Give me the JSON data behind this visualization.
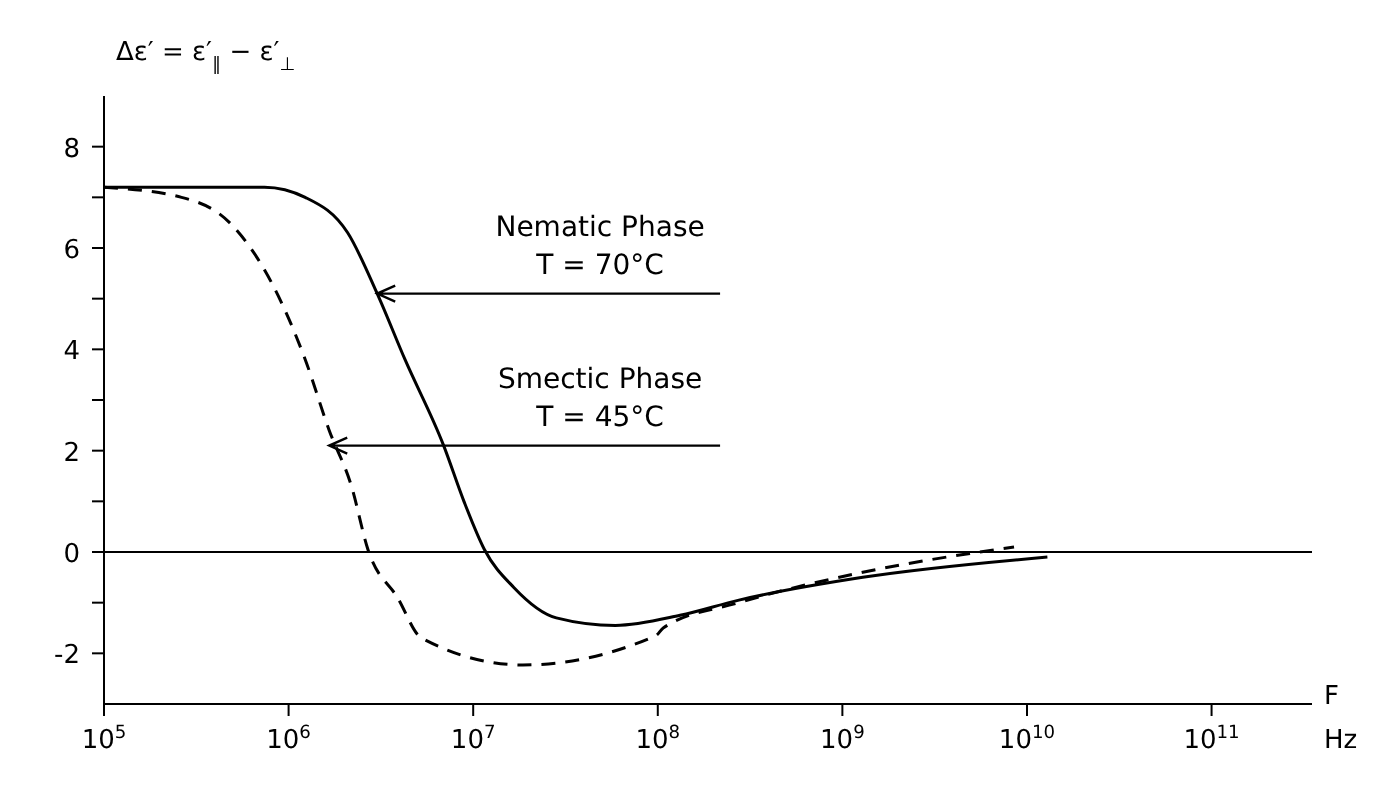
{
  "chart_data": {
    "type": "line",
    "xlabel": "F\nHz",
    "ylabel": "Δε′ = ε′$_{∥}$ − ε′$_{⊥}$",
    "log": "x",
    "marker": "none",
    "xlim": [
      100000,
      350000000000
    ],
    "xticks": [
      {
        "value": 100000,
        "label": "10$^{5}$"
      },
      {
        "value": 1000000,
        "label": "10$^{6}$"
      },
      {
        "value": 10000000,
        "label": "10$^{7}$"
      },
      {
        "value": 100000000,
        "label": "10$^{8}$"
      },
      {
        "value": 1000000000,
        "label": "10$^{9}$"
      },
      {
        "value": 10000000000,
        "label": "10$^{10}$"
      },
      {
        "value": 100000000000,
        "label": "10$^{11}$"
      }
    ],
    "ylim": [
      -3,
      9
    ],
    "yticks": [
      -2,
      {
        "value": -1,
        "label": null
      },
      0,
      {
        "value": 1,
        "label": null
      },
      2,
      {
        "value": 3,
        "label": null
      },
      4,
      {
        "value": 5,
        "label": null
      },
      6,
      {
        "value": 7,
        "label": null
      },
      8
    ],
    "series": [
      {
        "color": "#000000",
        "line_style": "solid",
        "x": [
          100000,
          740000,
          1230000,
          2090000,
          3020000,
          4270000,
          6920000,
          8910000,
          11500000,
          16600000,
          28200000,
          58900000,
          132000000,
          275000000,
          1290000000,
          12900000000
        ],
        "values": [
          7.2,
          7.2,
          7.0,
          6.3,
          5.1,
          3.8,
          2.1,
          1.0,
          0.05,
          -0.7,
          -1.3,
          -1.45,
          -1.25,
          -0.95,
          -0.5,
          -0.1
        ]
      },
      {
        "color": "#000000",
        "line_style": "dashed",
        "x": [
          100000,
          263000,
          479000,
          813000,
          1230000,
          1660000,
          2190000,
          2690000,
          3890000,
          5250000,
          18600000,
          97700000,
          107000000,
          275000000,
          1290000000,
          8510000000
        ],
        "values": [
          7.2,
          7.0,
          6.5,
          5.3,
          3.8,
          2.4,
          1.3,
          0.05,
          -0.9,
          -1.7,
          -2.23,
          -1.65,
          -1.5,
          -1.0,
          -0.4,
          0.1
        ]
      }
    ],
    "ref_lines": [
      {
        "axis": "y",
        "value": 0,
        "color": "#000000",
        "line_style": "solid"
      }
    ],
    "annotations": [
      {
        "text": "Nematic Phase\nT = 70°C",
        "x": 3020000,
        "y": 5.1
      },
      {
        "text": "Smectic Phase\nT = 45°C",
        "x": 1660000,
        "y": 2.1
      }
    ]
  }
}
